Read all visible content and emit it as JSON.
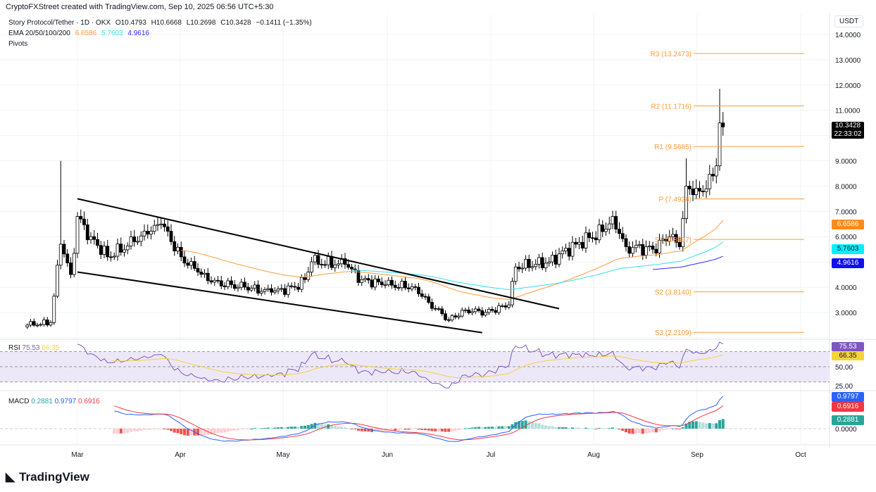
{
  "credit": "CryptoFXStreet created with TradingView.com, Sep 10, 2025 06:56 UTC+5:30",
  "legend": {
    "symbol": "Story Protocol/Tether · 1D · OKX",
    "open": "O10.4793",
    "high": "H10.6668",
    "low": "L10.2698",
    "close": "C10.3428",
    "change": "−0.1411 (−1.35%)",
    "ema_label": "EMA 20/50/100/200",
    "ema_values": [
      "6.6586",
      "5.7603",
      "4.9616"
    ],
    "pivots": "Pivots"
  },
  "colors": {
    "up": "#ffffff",
    "down": "#000000",
    "ema50": "#ff9a3c",
    "ema100": "#33e0ee",
    "ema200": "#2a2aff",
    "pivot": "#ff9a3c",
    "rsi": "#7e57c2",
    "rsi_ma": "#f5d33a",
    "macd": "#2962ff",
    "signal": "#f23645",
    "hist_up": "#26a69a",
    "hist_down": "#ef5350"
  },
  "currency": "USDT",
  "chart_data": [
    {
      "type": "candlestick",
      "title": "Story Protocol/Tether · 1D · OKX",
      "ylim": [
        2.0,
        14.5
      ],
      "y_ticks": [
        "14.0000",
        "13.0000",
        "12.0000",
        "11.0000",
        "9.0000",
        "8.0000",
        "7.0000",
        "6.0000",
        "4.0000",
        "3.0000"
      ],
      "x_ticks": [
        "Mar",
        "Apr",
        "May",
        "Jun",
        "Jul",
        "Aug",
        "Sep",
        "Oct"
      ],
      "approx_close_path": [
        [
          "2025-02-14",
          2.5
        ],
        [
          "2025-02-21",
          2.6
        ],
        [
          "2025-02-24",
          5.7
        ],
        [
          "2025-02-27",
          4.5
        ],
        [
          "2025-03-01",
          6.8
        ],
        [
          "2025-03-05",
          6.0
        ],
        [
          "2025-03-10",
          5.2
        ],
        [
          "2025-03-18",
          5.8
        ],
        [
          "2025-03-22",
          6.1
        ],
        [
          "2025-03-26",
          6.5
        ],
        [
          "2025-04-01",
          5.2
        ],
        [
          "2025-04-06",
          4.6
        ],
        [
          "2025-04-10",
          4.2
        ],
        [
          "2025-04-20",
          4.0
        ],
        [
          "2025-04-28",
          3.8
        ],
        [
          "2025-05-05",
          4.0
        ],
        [
          "2025-05-08",
          4.3
        ],
        [
          "2025-05-10",
          5.0
        ],
        [
          "2025-05-20",
          4.9
        ],
        [
          "2025-05-25",
          4.3
        ],
        [
          "2025-06-01",
          4.1
        ],
        [
          "2025-06-10",
          4.0
        ],
        [
          "2025-06-14",
          3.4
        ],
        [
          "2025-06-20",
          2.7
        ],
        [
          "2025-06-25",
          3.1
        ],
        [
          "2025-07-01",
          3.0
        ],
        [
          "2025-07-08",
          3.3
        ],
        [
          "2025-07-10",
          4.8
        ],
        [
          "2025-07-20",
          5.0
        ],
        [
          "2025-07-28",
          5.7
        ],
        [
          "2025-08-05",
          6.2
        ],
        [
          "2025-08-08",
          6.8
        ],
        [
          "2025-08-12",
          5.6
        ],
        [
          "2025-08-20",
          5.5
        ],
        [
          "2025-08-25",
          6.0
        ],
        [
          "2025-08-28",
          5.6
        ],
        [
          "2025-08-30",
          8.0
        ],
        [
          "2025-09-03",
          7.8
        ],
        [
          "2025-09-07",
          8.4
        ],
        [
          "2025-09-08",
          8.8
        ],
        [
          "2025-09-09",
          10.5
        ],
        [
          "2025-09-10",
          10.3428
        ]
      ],
      "last_price": "10.3428",
      "countdown": "22:33:02",
      "pivots": [
        {
          "label": "R3 (13.2473)",
          "value": 13.2473
        },
        {
          "label": "R2 (11.1716)",
          "value": 11.1716
        },
        {
          "label": "R1 (9.5685)",
          "value": 9.5685
        },
        {
          "label": "P (7.4928)",
          "value": 7.4928
        },
        {
          "label": "S1 (5.8897)",
          "value": 5.8897
        },
        {
          "label": "S2 (3.8140)",
          "value": 3.814
        },
        {
          "label": "S3 (2.2109)",
          "value": 2.2109
        }
      ],
      "ema_tags": [
        "6.6586",
        "5.7603",
        "4.9616"
      ],
      "trendlines": [
        {
          "name": "upper",
          "from": [
            "2025-03-01",
            7.5
          ],
          "to": [
            "2025-07-23",
            3.15
          ]
        },
        {
          "name": "lower",
          "from": [
            "2025-03-01",
            4.6
          ],
          "to": [
            "2025-06-30",
            2.2
          ]
        }
      ]
    },
    {
      "type": "line",
      "title": "RSI",
      "values": {
        "rsi": "75.53",
        "ma": "66.35"
      },
      "y_ticks": [
        "50.00",
        "25.00"
      ],
      "bands": [
        30,
        70
      ]
    },
    {
      "type": "bar",
      "title": "MACD",
      "values": {
        "hist": "0.2881",
        "macd": "0.9797",
        "signal": "0.6916"
      },
      "y_ticks": [
        "0.0000"
      ]
    }
  ],
  "brand": "TradingView"
}
